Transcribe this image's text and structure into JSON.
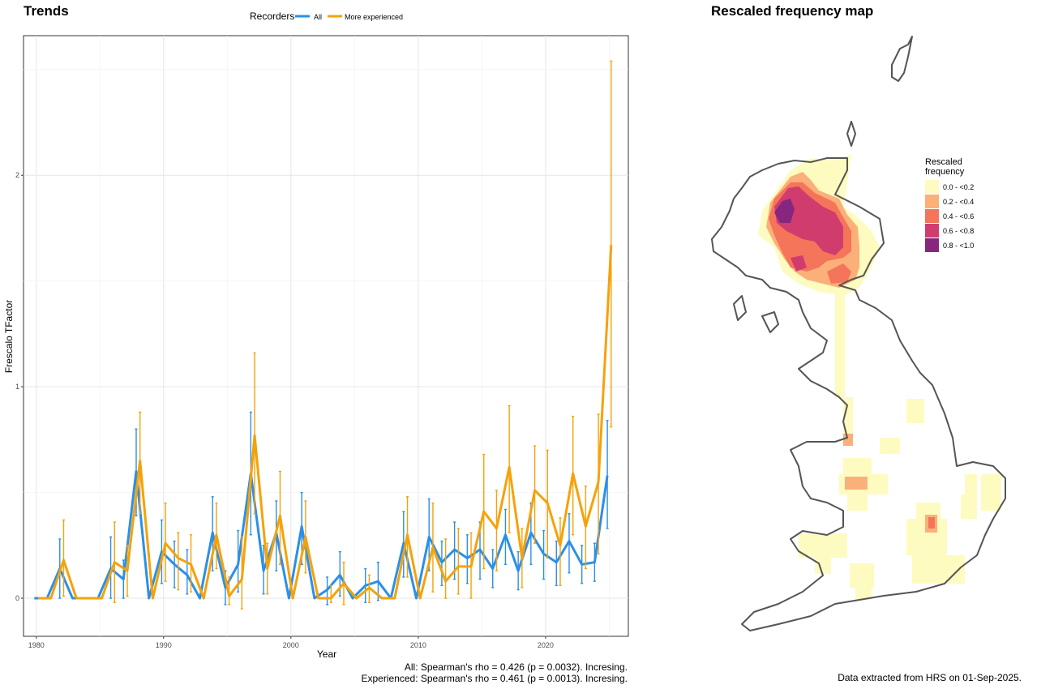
{
  "trends_title": "Trends",
  "map_title": "Rescaled frequency map",
  "legend": {
    "title": "Recorders",
    "items": [
      "All",
      "More experienced"
    ]
  },
  "colors": {
    "all": "#2b8fe8",
    "experienced": "#f5a20a"
  },
  "stats": {
    "all": "All: Spearman's rho = 0.426 (p = 0.0032). Incresing.",
    "experienced": "Experienced: Spearman's rho = 0.461 (p = 0.0013). Incresing."
  },
  "data_note": "Data extracted from HRS on 01-Sep-2025.",
  "map_legend": {
    "title_line1": "Rescaled",
    "title_line2": "frequency",
    "classes": [
      {
        "label": "0.0 - <0.2",
        "color": "#fefbc0"
      },
      {
        "label": "0.2 - <0.4",
        "color": "#fbb07a"
      },
      {
        "label": "0.4 - <0.6",
        "color": "#f47559"
      },
      {
        "label": "0.6 - <0.8",
        "color": "#d13c6e"
      },
      {
        "label": "0.8 - <1.0",
        "color": "#86267f"
      }
    ]
  },
  "chart_data": {
    "type": "line",
    "xlabel": "Year",
    "ylabel": "Frescalo TFactor",
    "xlim": [
      1979,
      2026.5
    ],
    "ylim": [
      -0.18,
      2.66
    ],
    "xticks": [
      1980,
      1990,
      2000,
      2010,
      2020
    ],
    "yticks": [
      0,
      1,
      2
    ],
    "grid": true,
    "legend_position": "top",
    "x": [
      1980,
      1981,
      1982,
      1983,
      1984,
      1985,
      1986,
      1987,
      1988,
      1989,
      1990,
      1991,
      1992,
      1993,
      1994,
      1995,
      1996,
      1997,
      1998,
      1999,
      2000,
      2001,
      2002,
      2003,
      2004,
      2005,
      2006,
      2007,
      2008,
      2009,
      2010,
      2011,
      2012,
      2013,
      2014,
      2015,
      2016,
      2017,
      2018,
      2019,
      2020,
      2021,
      2022,
      2023,
      2024,
      2025
    ],
    "series": [
      {
        "name": "All",
        "values": [
          0,
          0,
          0.14,
          0,
          0,
          0,
          0.14,
          0.09,
          0.6,
          0,
          0.22,
          0.16,
          0.11,
          0,
          0.31,
          0.05,
          0.16,
          0.59,
          0.13,
          0.31,
          0,
          0.34,
          0,
          0.04,
          0.11,
          0,
          0.06,
          0.08,
          0,
          0.26,
          0,
          0.29,
          0.17,
          0.23,
          0.19,
          0.23,
          0.14,
          0.3,
          0.13,
          0.31,
          0.21,
          0.17,
          0.27,
          0.16,
          0.17,
          0.58
        ],
        "lower": [
          0,
          0,
          0,
          0,
          0,
          0,
          0,
          0,
          0.39,
          0,
          0.07,
          0.05,
          0.02,
          0,
          0.13,
          -0.03,
          0.03,
          0.3,
          0.02,
          0.13,
          0,
          0.16,
          0,
          -0.03,
          0.01,
          0,
          -0.02,
          -0.01,
          0,
          0.1,
          0,
          0.13,
          0.06,
          0.09,
          0.07,
          0.09,
          0.05,
          0.16,
          0.04,
          0.16,
          0.09,
          0.06,
          0.12,
          0.07,
          0.08,
          0.33
        ],
        "upper": [
          0,
          0,
          0.28,
          0,
          0,
          0,
          0.29,
          0.18,
          0.8,
          0,
          0.37,
          0.27,
          0.23,
          0,
          0.48,
          0.13,
          0.32,
          0.88,
          0.25,
          0.46,
          0,
          0.5,
          0,
          0.1,
          0.22,
          0,
          0.14,
          0.17,
          0,
          0.41,
          0,
          0.47,
          0.27,
          0.36,
          0.3,
          0.36,
          0.23,
          0.42,
          0.22,
          0.45,
          0.32,
          0.27,
          0.4,
          0.25,
          0.26,
          0.84
        ]
      },
      {
        "name": "More experienced",
        "values": [
          0,
          0,
          0.18,
          0,
          0,
          0,
          0.17,
          0.13,
          0.65,
          0,
          0.26,
          0.19,
          0.16,
          0,
          0.3,
          0.01,
          0.09,
          0.77,
          0.14,
          0.39,
          0,
          0.29,
          0,
          0,
          0.07,
          0,
          0.05,
          0,
          0,
          0.3,
          0,
          0.24,
          0.08,
          0.15,
          0.15,
          0.41,
          0.33,
          0.62,
          0.19,
          0.51,
          0.45,
          0.25,
          0.59,
          0.34,
          0.55,
          1.67
        ],
        "lower": [
          0,
          0,
          0.01,
          0,
          0,
          0,
          -0.02,
          0.01,
          0.4,
          0,
          0.08,
          0.04,
          0.03,
          0,
          0.14,
          -0.03,
          -0.05,
          0.4,
          0.02,
          0.16,
          0,
          0.12,
          0,
          -0.02,
          -0.03,
          0,
          -0.02,
          0,
          0,
          0.1,
          0,
          0.03,
          0,
          0.02,
          0,
          0.14,
          0.13,
          0.31,
          0.05,
          0.26,
          0.19,
          0.06,
          0.3,
          0.14,
          0.21,
          0.81
        ],
        "upper": [
          0,
          0,
          0.37,
          0,
          0,
          0,
          0.36,
          0.25,
          0.88,
          0,
          0.45,
          0.31,
          0.3,
          0,
          0.45,
          0.1,
          0.29,
          1.16,
          0.26,
          0.6,
          0,
          0.46,
          0,
          0.06,
          0.17,
          0,
          0.11,
          0,
          0,
          0.48,
          0,
          0.45,
          0.28,
          0.33,
          0.31,
          0.68,
          0.51,
          0.91,
          0.33,
          0.72,
          0.7,
          0.38,
          0.86,
          0.53,
          0.87,
          2.54
        ]
      }
    ]
  }
}
